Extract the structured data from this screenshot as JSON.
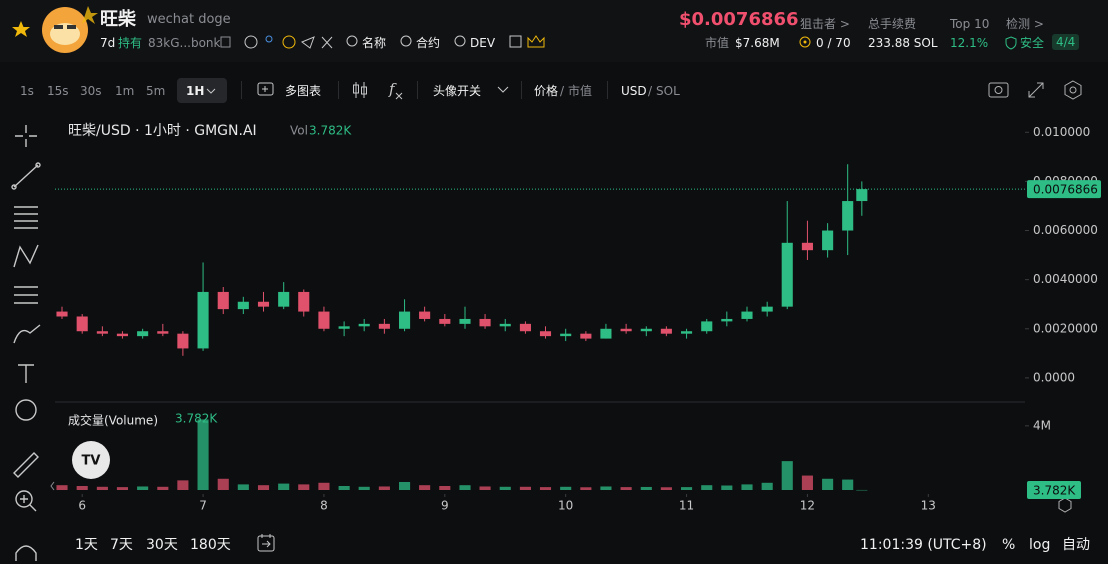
{
  "header": {
    "name": "旺柴",
    "subtitle": "wechat doge",
    "age": "7d",
    "holders_label": "持有",
    "holders": "83kG...bonk",
    "links": [
      "名称",
      "合约",
      "DEV"
    ],
    "price": "$0.0076866",
    "mcap_label": "市值",
    "mcap": "$7.68M",
    "stats": [
      {
        "label": "狙击者 >",
        "value": "0 / 70"
      },
      {
        "label": "总手续费",
        "value": "233.88 SOL"
      },
      {
        "label": "Top 10",
        "value": "12.1%"
      },
      {
        "label": "检测 >",
        "value": "安全",
        "extra": "4/4"
      }
    ]
  },
  "toolbar": {
    "intervals": [
      "1s",
      "15s",
      "30s",
      "1m",
      "5m",
      "1H"
    ],
    "multi": "多图表",
    "avatar": "头像开关",
    "price": "价格",
    "mcap": "市值",
    "usd": "USD",
    "sol": "SOL"
  },
  "chart_data": {
    "type": "candlestick",
    "title": "旺柴/USD · 1小时 · GMGN.AI",
    "vol_label": "Vol",
    "volume_title": "成交量(Volume)",
    "x": [
      5.833,
      6.0,
      6.167,
      6.333,
      6.5,
      6.667,
      6.833,
      7.0,
      7.167,
      7.333,
      7.5,
      7.667,
      7.833,
      8.0,
      8.167,
      8.333,
      8.5,
      8.667,
      8.833,
      9.0,
      9.167,
      9.333,
      9.5,
      9.667,
      9.833,
      10.0,
      10.167,
      10.333,
      10.5,
      10.667,
      10.833,
      11.0,
      11.167,
      11.333,
      11.5,
      11.667,
      11.833,
      12.0,
      12.167,
      12.333,
      12.45
    ],
    "open": [
      0.0027,
      0.0025,
      0.0019,
      0.0018,
      0.0017,
      0.0019,
      0.0018,
      0.0012,
      0.0035,
      0.0028,
      0.0031,
      0.0029,
      0.0035,
      0.0027,
      0.002,
      0.0021,
      0.0022,
      0.002,
      0.0027,
      0.0024,
      0.0022,
      0.0024,
      0.0021,
      0.0022,
      0.0019,
      0.0017,
      0.0018,
      0.0016,
      0.002,
      0.0019,
      0.002,
      0.0018,
      0.0019,
      0.0023,
      0.0024,
      0.0027,
      0.0029,
      0.0055,
      0.0052,
      0.006,
      0.0072
    ],
    "high": [
      0.0029,
      0.0026,
      0.0021,
      0.0019,
      0.002,
      0.0022,
      0.0019,
      0.0047,
      0.0037,
      0.0033,
      0.0035,
      0.0039,
      0.0036,
      0.0029,
      0.0023,
      0.0024,
      0.0024,
      0.0032,
      0.0029,
      0.0026,
      0.0029,
      0.0026,
      0.0024,
      0.0023,
      0.0021,
      0.002,
      0.0019,
      0.0022,
      0.0022,
      0.0021,
      0.0021,
      0.002,
      0.0024,
      0.0027,
      0.0029,
      0.0031,
      0.0072,
      0.0064,
      0.0063,
      0.0087,
      0.008
    ],
    "low": [
      0.0024,
      0.0018,
      0.0017,
      0.0016,
      0.0016,
      0.0017,
      0.0009,
      0.0011,
      0.0026,
      0.0026,
      0.0027,
      0.0028,
      0.0025,
      0.0019,
      0.0017,
      0.0019,
      0.0018,
      0.0019,
      0.0023,
      0.0021,
      0.002,
      0.002,
      0.0019,
      0.0018,
      0.0016,
      0.0015,
      0.0015,
      0.0016,
      0.0018,
      0.0017,
      0.0017,
      0.0016,
      0.0018,
      0.0021,
      0.0023,
      0.0025,
      0.0028,
      0.0048,
      0.0049,
      0.005,
      0.0066
    ],
    "close": [
      0.0025,
      0.0019,
      0.0018,
      0.0017,
      0.0019,
      0.0018,
      0.0012,
      0.0035,
      0.0028,
      0.0031,
      0.0029,
      0.0035,
      0.0027,
      0.002,
      0.0021,
      0.0022,
      0.002,
      0.0027,
      0.0024,
      0.0022,
      0.0024,
      0.0021,
      0.0022,
      0.0019,
      0.0017,
      0.0018,
      0.0016,
      0.002,
      0.0019,
      0.002,
      0.0018,
      0.0019,
      0.0023,
      0.0024,
      0.0027,
      0.0029,
      0.0055,
      0.0052,
      0.006,
      0.0072,
      0.0076866
    ],
    "volume": [
      300000,
      250000,
      200000,
      180000,
      220000,
      200000,
      600000,
      4400000,
      700000,
      350000,
      300000,
      400000,
      350000,
      450000,
      250000,
      200000,
      220000,
      500000,
      300000,
      250000,
      300000,
      220000,
      200000,
      200000,
      180000,
      200000,
      170000,
      220000,
      180000,
      190000,
      170000,
      180000,
      300000,
      280000,
      350000,
      450000,
      1800000,
      900000,
      700000,
      650000,
      3782
    ],
    "current_price": 0.0076866,
    "current_volume": {
      "value": 3782,
      "label": "3.782K"
    },
    "up_color": "#2ebd85",
    "down_color": "#e0526c",
    "xlim": [
      5.775,
      13.8
    ],
    "xticks": [
      6,
      7,
      8,
      9,
      10,
      11,
      12,
      13
    ],
    "ylim": [
      -0.0009,
      0.0105
    ],
    "yticks": [
      {
        "value": 0,
        "label": "0.0000"
      },
      {
        "value": 0.002,
        "label": "0.0020000"
      },
      {
        "value": 0.004,
        "label": "0.0040000"
      },
      {
        "value": 0.006,
        "label": "0.0060000"
      },
      {
        "value": 0.008,
        "label": "0.0080000"
      },
      {
        "value": 0.01,
        "label": "0.010000"
      }
    ],
    "vlim": [
      0,
      5300000
    ],
    "vticks": [
      {
        "value": 4000000,
        "label": "4M"
      }
    ]
  },
  "footer": {
    "ranges": [
      "1天",
      "7天",
      "30天",
      "180天"
    ],
    "time": "11:01:39 (UTC+8)",
    "options": [
      "%",
      "log",
      "自动"
    ]
  }
}
